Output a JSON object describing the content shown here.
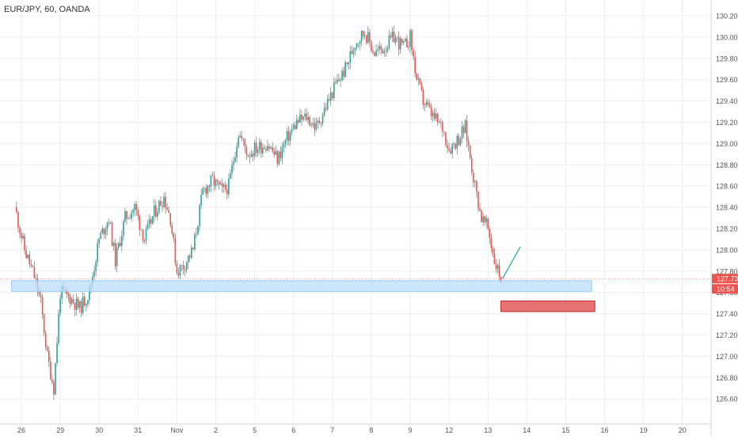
{
  "chart_data": {
    "type": "candlestick",
    "title": "EUR/JPY, 60, OANDA",
    "ylim": [
      126.5,
      130.3
    ],
    "y_ticks": [
      "130.200",
      "130.000",
      "129.800",
      "129.600",
      "129.400",
      "129.200",
      "129.000",
      "128.800",
      "128.600",
      "128.400",
      "128.200",
      "128.000",
      "127.800",
      "127.600",
      "127.400",
      "127.200",
      "127.000",
      "126.800",
      "126.600"
    ],
    "x_ticks": [
      {
        "label": "26",
        "date": "2018-10-26"
      },
      {
        "label": "29",
        "date": "2018-10-29"
      },
      {
        "label": "30",
        "date": "2018-10-30"
      },
      {
        "label": "31",
        "date": "2018-10-31"
      },
      {
        "label": "Nov",
        "date": "2018-11-01"
      },
      {
        "label": "2",
        "date": "2018-11-02"
      },
      {
        "label": "5",
        "date": "2018-11-05"
      },
      {
        "label": "6",
        "date": "2018-11-06"
      },
      {
        "label": "7",
        "date": "2018-11-07"
      },
      {
        "label": "8",
        "date": "2018-11-08"
      },
      {
        "label": "9",
        "date": "2018-11-09"
      },
      {
        "label": "12",
        "date": "2018-11-12"
      },
      {
        "label": "13",
        "date": "2018-11-13"
      },
      {
        "label": "14",
        "date": "2018-11-14"
      },
      {
        "label": "15",
        "date": "2018-11-15"
      },
      {
        "label": "16",
        "date": "2018-11-16"
      },
      {
        "label": "19",
        "date": "2018-11-19"
      },
      {
        "label": "20",
        "date": "2018-11-20"
      }
    ],
    "price_path": [
      [
        "2018-10-25 20:00",
        128.4
      ],
      [
        "2018-10-26 02:00",
        128.0
      ],
      [
        "2018-10-26 08:00",
        127.75
      ],
      [
        "2018-10-26 12:00",
        127.5
      ],
      [
        "2018-10-26 16:00",
        127.0
      ],
      [
        "2018-10-26 20:00",
        126.7
      ],
      [
        "2018-10-29 00:00",
        127.6
      ],
      [
        "2018-10-29 06:00",
        127.55
      ],
      [
        "2018-10-29 12:00",
        127.45
      ],
      [
        "2018-10-29 18:00",
        127.6
      ],
      [
        "2018-10-30 00:00",
        128.1
      ],
      [
        "2018-10-30 06:00",
        128.3
      ],
      [
        "2018-10-30 10:00",
        127.9
      ],
      [
        "2018-10-30 16:00",
        128.3
      ],
      [
        "2018-10-30 22:00",
        128.4
      ],
      [
        "2018-10-31 04:00",
        128.1
      ],
      [
        "2018-10-31 10:00",
        128.35
      ],
      [
        "2018-10-31 16:00",
        128.5
      ],
      [
        "2018-10-31 20:00",
        128.3
      ],
      [
        "2018-11-01 00:00",
        127.8
      ],
      [
        "2018-11-01 04:00",
        127.85
      ],
      [
        "2018-11-01 10:00",
        128.0
      ],
      [
        "2018-11-01 16:00",
        128.55
      ],
      [
        "2018-11-01 22:00",
        128.65
      ],
      [
        "2018-11-02 04:00",
        128.55
      ],
      [
        "2018-11-02 08:00",
        128.6
      ],
      [
        "2018-11-02 14:00",
        129.1
      ],
      [
        "2018-11-02 20:00",
        128.9
      ],
      [
        "2018-11-05 00:00",
        128.95
      ],
      [
        "2018-11-05 08:00",
        129.0
      ],
      [
        "2018-11-05 14:00",
        128.85
      ],
      [
        "2018-11-05 20:00",
        129.05
      ],
      [
        "2018-11-06 02:00",
        129.2
      ],
      [
        "2018-11-06 08:00",
        129.25
      ],
      [
        "2018-11-06 14:00",
        129.15
      ],
      [
        "2018-11-06 20:00",
        129.35
      ],
      [
        "2018-11-07 02:00",
        129.55
      ],
      [
        "2018-11-07 08:00",
        129.7
      ],
      [
        "2018-11-07 14:00",
        129.95
      ],
      [
        "2018-11-07 20:00",
        130.05
      ],
      [
        "2018-11-08 02:00",
        129.85
      ],
      [
        "2018-11-08 08:00",
        129.9
      ],
      [
        "2018-11-08 14:00",
        130.0
      ],
      [
        "2018-11-08 20:00",
        129.9
      ],
      [
        "2018-11-09 00:00",
        130.0
      ],
      [
        "2018-11-09 04:00",
        129.6
      ],
      [
        "2018-11-09 08:00",
        129.4
      ],
      [
        "2018-11-09 14:00",
        129.25
      ],
      [
        "2018-11-09 20:00",
        129.15
      ],
      [
        "2018-11-12 00:00",
        128.95
      ],
      [
        "2018-11-12 06:00",
        129.05
      ],
      [
        "2018-11-12 10:00",
        129.15
      ],
      [
        "2018-11-12 16:00",
        128.6
      ],
      [
        "2018-11-12 20:00",
        128.3
      ],
      [
        "2018-11-13 00:00",
        128.2
      ],
      [
        "2018-11-13 04:00",
        127.9
      ],
      [
        "2018-11-13 08:00",
        127.73
      ]
    ],
    "last_price": {
      "label": "127.730",
      "value": 127.73,
      "countdown": "10:54",
      "color": "#ef5350"
    },
    "support_zone": {
      "y_low": 127.61,
      "y_high": 127.71,
      "x_start": "2018-10-25 18:00",
      "x_end": "2018-11-15 16:00",
      "color": "#bbdefb"
    },
    "target_zone": {
      "y_low": 127.42,
      "y_high": 127.52,
      "x_start": "2018-11-13 08:00",
      "x_end": "2018-11-15 18:00",
      "color": "#e57373"
    },
    "trend_line": {
      "x1": "2018-11-13 09:00",
      "y1": 127.73,
      "x2": "2018-11-13 20:00",
      "y2": 128.03,
      "color": "#26a69a"
    },
    "colors": {
      "up": "#26a69a",
      "down": "#ef5350",
      "grid": "#eeeeee",
      "text": "#555555"
    }
  }
}
